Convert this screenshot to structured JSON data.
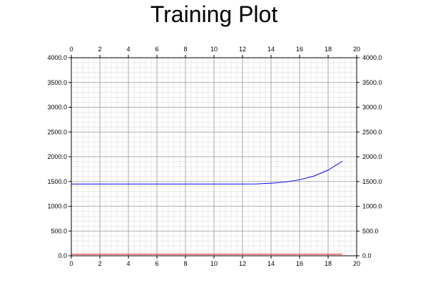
{
  "chart_data": {
    "type": "line",
    "title": "Training Plot",
    "xlabel": "",
    "ylabel": "",
    "xlim": [
      0,
      20
    ],
    "ylim": [
      0,
      4000
    ],
    "x_ticks": [
      0,
      2,
      4,
      6,
      8,
      10,
      12,
      14,
      16,
      18,
      20
    ],
    "x_tick_labels": [
      "0",
      "2",
      "4",
      "6",
      "8",
      "10",
      "12",
      "14",
      "16",
      "18",
      "20"
    ],
    "y_ticks": [
      0,
      500,
      1000,
      1500,
      2000,
      2500,
      3000,
      3500,
      4000
    ],
    "y_tick_labels": [
      "0.0",
      "500.0",
      "1000.0",
      "1500.0",
      "2000.0",
      "2500.0",
      "3000.0",
      "3500.0",
      "4000.0"
    ],
    "x_axis_top": true,
    "y_axis_right": true,
    "grid": true,
    "minor_grid": true,
    "legend": "none",
    "x": [
      0,
      1,
      2,
      3,
      4,
      5,
      6,
      7,
      8,
      9,
      10,
      11,
      12,
      13,
      14,
      15,
      16,
      17,
      18,
      19
    ],
    "series": [
      {
        "color": "#0000ff",
        "values": [
          1450,
          1450,
          1450,
          1450,
          1450,
          1450,
          1450,
          1450,
          1450,
          1450,
          1450,
          1450,
          1450,
          1452,
          1465,
          1490,
          1535,
          1610,
          1730,
          1910
        ]
      },
      {
        "color": "#ff0000",
        "values": [
          30,
          30,
          30,
          30,
          30,
          30,
          30,
          30,
          30,
          30,
          30,
          30,
          30,
          30,
          30,
          30,
          30,
          30,
          30,
          30
        ]
      }
    ]
  }
}
